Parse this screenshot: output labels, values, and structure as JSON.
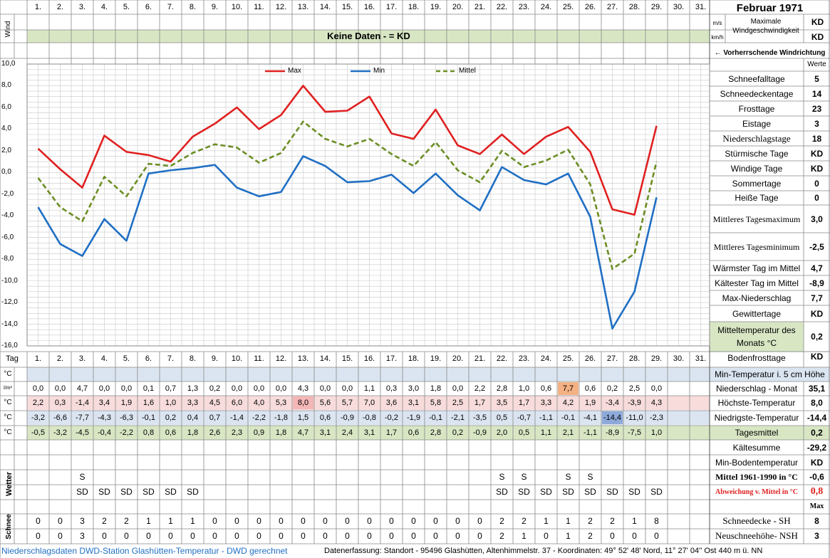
{
  "header": {
    "month": "Februar 1971",
    "wind_label": "Wind",
    "wind_unit_ms": "m/s",
    "wind_unit_kmh": "km/h",
    "wind_max_label": "Maximale Windgeschwindigkeit",
    "wind_max_value": "KD",
    "wind_max_value2": "KD",
    "no_data_text": "Keine Daten -  = KD",
    "prevailing_wind": "← Vorherrschende Windrichtung",
    "werte": "Werte"
  },
  "days": [
    "1.",
    "2.",
    "3.",
    "4.",
    "5.",
    "6.",
    "7.",
    "8.",
    "9.",
    "10.",
    "11.",
    "12.",
    "13.",
    "14.",
    "15.",
    "16.",
    "17.",
    "18.",
    "19.",
    "20.",
    "21.",
    "22.",
    "23.",
    "24.",
    "25.",
    "26.",
    "27.",
    "28.",
    "29.",
    "30.",
    "31."
  ],
  "tag_label": "Tag",
  "chart_data": {
    "type": "line",
    "x": [
      "1.",
      "2.",
      "3.",
      "4.",
      "5.",
      "6.",
      "7.",
      "8.",
      "9.",
      "10.",
      "11.",
      "12.",
      "13.",
      "14.",
      "15.",
      "16.",
      "17.",
      "18.",
      "19.",
      "20.",
      "21.",
      "22.",
      "23.",
      "24.",
      "25.",
      "26.",
      "27.",
      "28.",
      "29."
    ],
    "ylim": [
      -16,
      10
    ],
    "yticks": [
      "10,0",
      "8,0",
      "6,0",
      "4,0",
      "2,0",
      "0,0",
      "-2,0",
      "-4,0",
      "-6,0",
      "-8,0",
      "-10,0",
      "-12,0",
      "-14,0",
      "-16,0"
    ],
    "legend_position": "top",
    "grid": true,
    "series": [
      {
        "name": "Max",
        "color": "#e02020",
        "values": [
          2.2,
          0.3,
          -1.4,
          3.4,
          1.9,
          1.6,
          1.0,
          3.3,
          4.5,
          6.0,
          4.0,
          5.3,
          8.0,
          5.6,
          5.7,
          7.0,
          3.6,
          3.1,
          5.8,
          2.5,
          1.7,
          3.5,
          1.7,
          3.3,
          4.2,
          1.9,
          -3.4,
          -3.9,
          4.3
        ]
      },
      {
        "name": "Min",
        "color": "#1f6fc4",
        "values": [
          -3.2,
          -6.6,
          -7.7,
          -4.3,
          -6.3,
          -0.1,
          0.2,
          0.4,
          0.7,
          -1.4,
          -2.2,
          -1.8,
          1.5,
          0.6,
          -0.9,
          -0.8,
          -0.2,
          -1.9,
          -0.1,
          -2.1,
          -3.5,
          0.5,
          -0.7,
          -1.1,
          -0.1,
          -4.1,
          -14.4,
          -11.0,
          -2.3
        ]
      },
      {
        "name": "Mittel",
        "color": "#6b8e23",
        "dashed": true,
        "values": [
          -0.5,
          -3.2,
          -4.5,
          -0.4,
          -2.2,
          0.8,
          0.6,
          1.8,
          2.6,
          2.3,
          0.9,
          1.8,
          4.7,
          3.1,
          2.4,
          3.1,
          1.7,
          0.6,
          2.8,
          0.2,
          -0.9,
          2.0,
          0.5,
          1.1,
          2.1,
          -1.1,
          -8.9,
          -7.5,
          1.0
        ]
      }
    ]
  },
  "table": {
    "units": [
      "°C",
      "l/m²",
      "°C",
      "°C",
      "°C"
    ],
    "precip": [
      "0,0",
      "0,0",
      "4,7",
      "0,0",
      "0,0",
      "0,1",
      "0,7",
      "1,3",
      "0,2",
      "0,0",
      "0,0",
      "0,0",
      "4,3",
      "0,0",
      "0,0",
      "1,1",
      "0,3",
      "3,0",
      "1,8",
      "0,0",
      "2,2",
      "2,8",
      "1,0",
      "0,6",
      "7,7",
      "0,6",
      "0,2",
      "2,5",
      "0,0"
    ],
    "max": [
      "2,2",
      "0,3",
      "-1,4",
      "3,4",
      "1,9",
      "1,6",
      "1,0",
      "3,3",
      "4,5",
      "6,0",
      "4,0",
      "5,3",
      "8,0",
      "5,6",
      "5,7",
      "7,0",
      "3,6",
      "3,1",
      "5,8",
      "2,5",
      "1,7",
      "3,5",
      "1,7",
      "3,3",
      "4,2",
      "1,9",
      "-3,4",
      "-3,9",
      "4,3"
    ],
    "min": [
      "-3,2",
      "-6,6",
      "-7,7",
      "-4,3",
      "-6,3",
      "-0,1",
      "0,2",
      "0,4",
      "0,7",
      "-1,4",
      "-2,2",
      "-1,8",
      "1,5",
      "0,6",
      "-0,9",
      "-0,8",
      "-0,2",
      "-1,9",
      "-0,1",
      "-2,1",
      "-3,5",
      "0,5",
      "-0,7",
      "-1,1",
      "-0,1",
      "-4,1",
      "-14,4",
      "-11,0",
      "-2,3"
    ],
    "mean": [
      "-0,5",
      "-3,2",
      "-4,5",
      "-0,4",
      "-2,2",
      "0,8",
      "0,6",
      "1,8",
      "2,6",
      "2,3",
      "0,9",
      "1,8",
      "4,7",
      "3,1",
      "2,4",
      "3,1",
      "1,7",
      "0,6",
      "2,8",
      "0,2",
      "-0,9",
      "2,0",
      "0,5",
      "1,1",
      "2,1",
      "-1,1",
      "-8,9",
      "-7,5",
      "1,0"
    ],
    "wetter_label": "Wetter",
    "wetter_s": [
      "",
      "",
      "S",
      "",
      "",
      "",
      "",
      "",
      "",
      "",
      "",
      "",
      "",
      "",
      "",
      "",
      "",
      "",
      "",
      "",
      "",
      "S",
      "S",
      "",
      "S",
      "S",
      "",
      "",
      ""
    ],
    "wetter_sd": [
      "",
      "",
      "SD",
      "SD",
      "SD",
      "SD",
      "SD",
      "SD",
      "",
      "",
      "",
      "",
      "",
      "",
      "",
      "",
      "",
      "",
      "",
      "",
      "",
      "SD",
      "SD",
      "SD",
      "SD",
      "SD",
      "SD",
      "SD",
      "SD"
    ],
    "schnee_label": "Schnee",
    "sh": [
      "0",
      "0",
      "3",
      "2",
      "2",
      "1",
      "1",
      "1",
      "0",
      "0",
      "0",
      "0",
      "0",
      "0",
      "0",
      "0",
      "0",
      "0",
      "0",
      "0",
      "0",
      "2",
      "2",
      "1",
      "1",
      "2",
      "2",
      "1",
      "8"
    ],
    "nsh": [
      "0",
      "0",
      "3",
      "0",
      "0",
      "0",
      "0",
      "0",
      "0",
      "0",
      "0",
      "0",
      "0",
      "0",
      "0",
      "0",
      "0",
      "0",
      "0",
      "0",
      "0",
      "2",
      "1",
      "0",
      "1",
      "2",
      "0",
      "0",
      "0"
    ],
    "highlight_precip_max_index": 24,
    "highlight_precip_color": "#f4b183",
    "highlight_min_index": 26,
    "highlight_min_color": "#8eaadb",
    "highlight_max_index": 12,
    "highlight_max_color": "#f4b6b6"
  },
  "stats": [
    {
      "label": "Schneefalltage",
      "value": "5"
    },
    {
      "label": "Schneedeckentage",
      "value": "14"
    },
    {
      "label": "Frosttage",
      "value": "23"
    },
    {
      "label": "Eistage",
      "value": "3"
    },
    {
      "label": "Niederschlagstage",
      "value": "18"
    },
    {
      "label": "Stürmische Tage",
      "value": "KD"
    },
    {
      "label": "Windige Tage",
      "value": "KD"
    },
    {
      "label": "Sommertage",
      "value": "0"
    },
    {
      "label": "Heiße Tage",
      "value": "0"
    },
    {
      "label": "Mittleres Tagesmaximum",
      "value": "3,0"
    },
    {
      "label": "Mittleres Tagesminimum",
      "value": "-2,5"
    },
    {
      "label": "Wärmster Tag im Mittel",
      "value": "4,7"
    },
    {
      "label": "Kältester Tag im Mittel",
      "value": "-8,9"
    },
    {
      "label": "Max-Niederschlag",
      "value": "7,7"
    },
    {
      "label": "Gewittertage",
      "value": "KD"
    },
    {
      "label": "Mitteltemperatur des Monats °C",
      "value": "0,2"
    },
    {
      "label": "Bodenfrosttage",
      "value": "KD"
    }
  ],
  "table_right": {
    "min5cm": "Min-Temperatur i. 5 cm Höhe",
    "niederschlag_label": "Niederschlag - Monat",
    "niederschlag_value": "35,1",
    "hoechste_label": "Höchste-Temperatur",
    "hoechste_value": "8,0",
    "niedrigste_label": "Niedrigste-Temperatur",
    "niedrigste_value": "-14,4",
    "tagesmittel_label": "Tagesmittel",
    "tagesmittel_value": "0,2",
    "kaeltesumme_label": "Kältesumme",
    "kaeltesumme_value": "-29,2",
    "minboden_label": "Min-Bodentemperatur",
    "minboden_value": "KD",
    "mittel6190_label": "Mittel 1961-1990 in °C",
    "mittel6190_value": "-0,6",
    "abweichung_label": "Abweichung v. Mittel in °C",
    "abweichung_value": "0,8",
    "max_label": "Max",
    "sh_label": "Schneedecke -  SH",
    "sh_value": "8",
    "nsh_label": "Neuschneehöhe- NSH",
    "nsh_value": "3"
  },
  "footer": {
    "left": "Niederschlagsdaten DWD-Station Glashütten-Temperatur -  DWD gerechnet",
    "right": "Datenerfassung: Standort -  95496  Glashütten, Altenhimmelstr. 37 - Koordinaten:  49° 52' 48' Nord,  11° 27' 04'' Ost  440 m ü. NN"
  }
}
